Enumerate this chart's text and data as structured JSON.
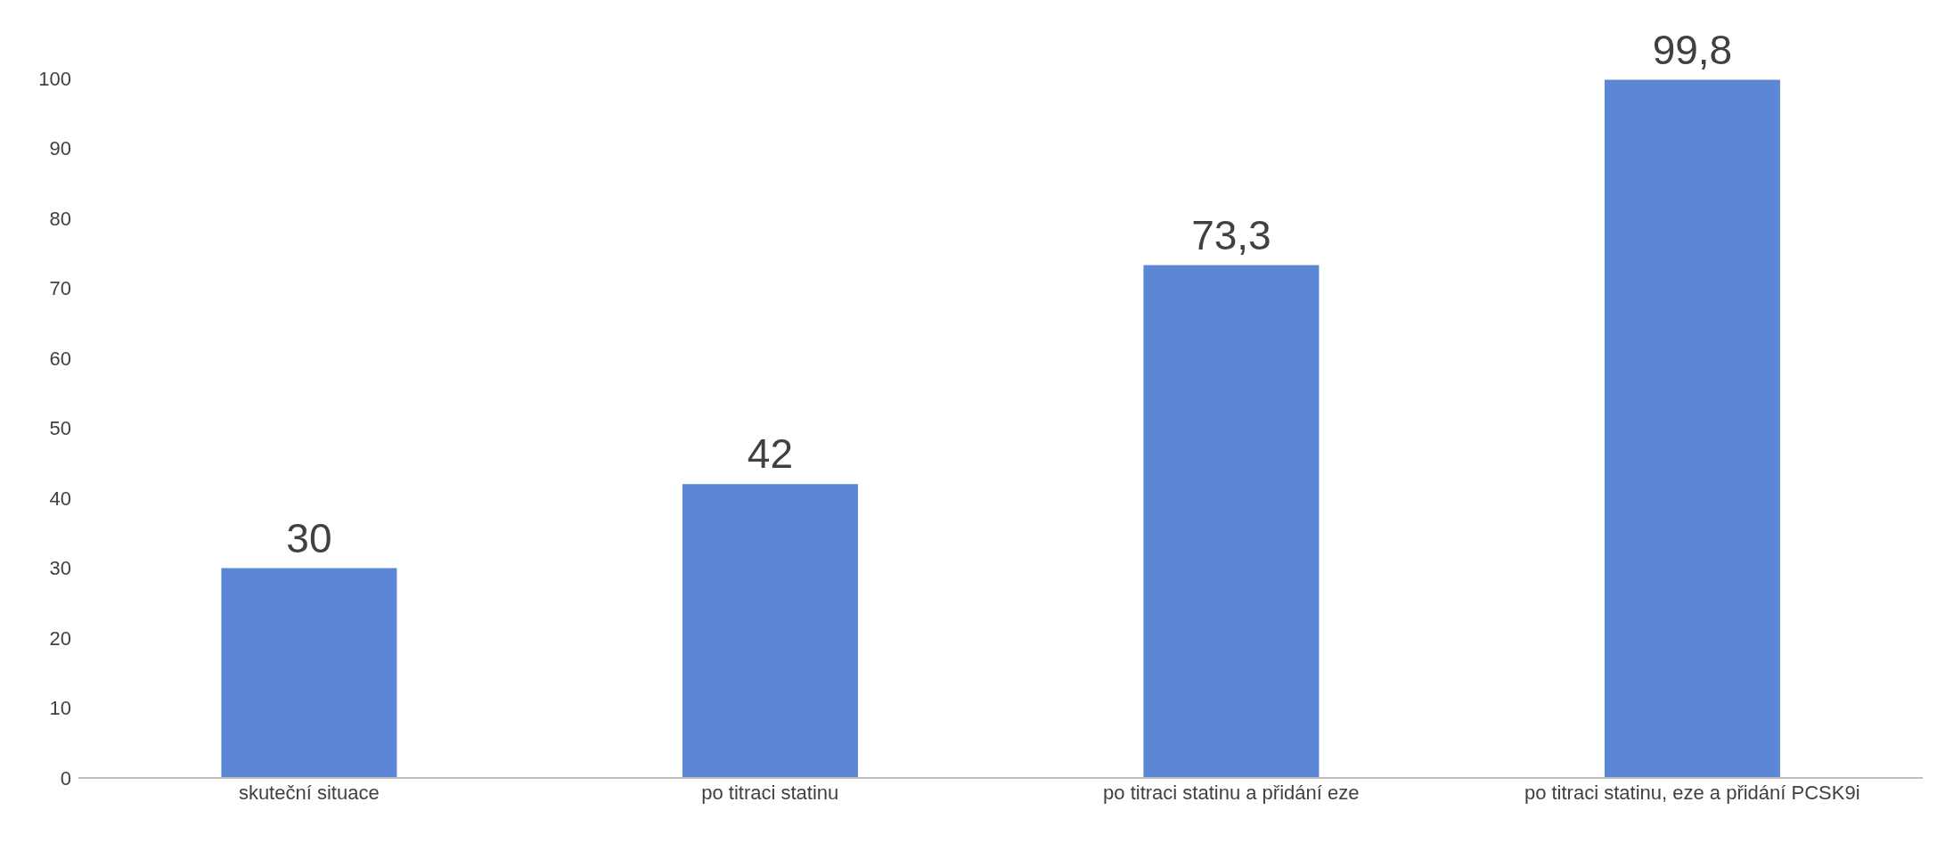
{
  "chart_data": {
    "type": "bar",
    "categories": [
      "skuteční situace",
      "po titraci statinu",
      "po titraci statinu a přidání eze",
      "po titraci statinu, eze a přidání PCSK9i"
    ],
    "values": [
      30,
      42,
      73.3,
      99.8
    ],
    "value_labels": [
      "30",
      "42",
      "73,3",
      "99,8"
    ],
    "color": "#5b87d6",
    "ylim": [
      0,
      100
    ],
    "yticks": [
      0,
      10,
      20,
      30,
      40,
      50,
      60,
      70,
      80,
      90,
      100
    ],
    "grid": false,
    "legend": false
  }
}
